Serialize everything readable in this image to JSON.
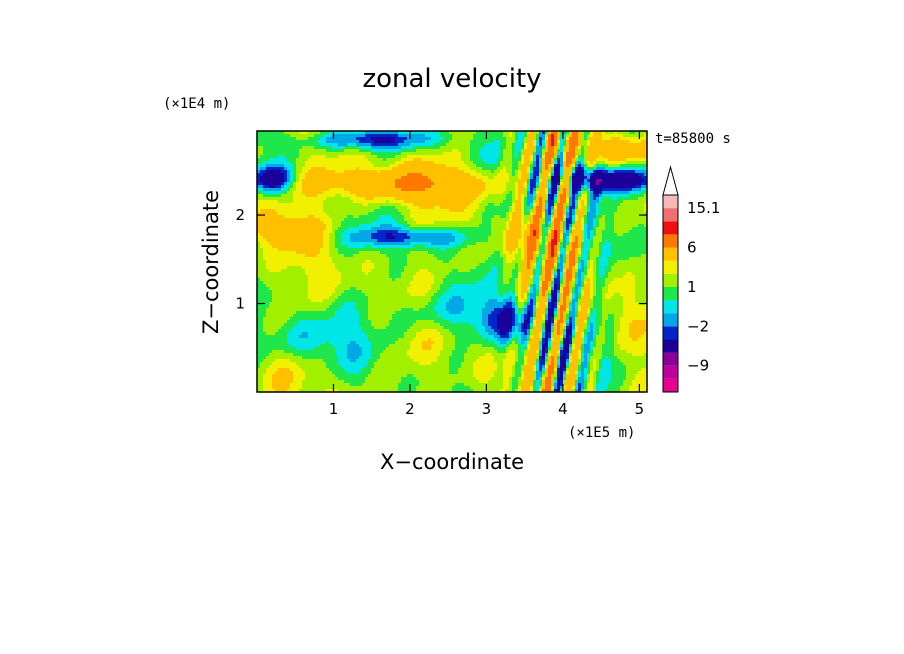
{
  "chart_data": {
    "type": "heatmap",
    "title": "zonal velocity",
    "xlabel": "X−coordinate",
    "ylabel": "Z−coordinate",
    "x_unit_label": "(×1E5 m)",
    "y_unit_label": "(×1E4 m)",
    "time_label": "t=85800 s",
    "xlim": [
      0,
      5.1
    ],
    "ylim": [
      0,
      2.95
    ],
    "x_ticks": [
      1,
      2,
      3,
      4,
      5
    ],
    "y_ticks": [
      1,
      2
    ],
    "x_tick_labels": [
      "1",
      "2",
      "3",
      "4",
      "5"
    ],
    "y_tick_labels": [
      "1",
      "2"
    ],
    "colorbar": {
      "levels": [
        -15,
        -12,
        -9,
        -6,
        -3,
        -2,
        -1,
        0,
        1,
        2,
        3,
        6,
        9,
        12,
        15.1
      ],
      "colors": [
        "#e6008c",
        "#c0009b",
        "#8a0096",
        "#1a0099",
        "#0025c8",
        "#00a8e6",
        "#00e6e6",
        "#1fe64a",
        "#a0f000",
        "#f0f000",
        "#ffc000",
        "#ff7800",
        "#ee1010",
        "#f07070",
        "#f8b8b8"
      ],
      "extend": "max",
      "tick_labels": [
        "15.1",
        "6",
        "1",
        "−2",
        "−9"
      ],
      "tick_values": [
        15.1,
        6,
        1,
        -2,
        -9
      ]
    },
    "grid": false
  }
}
